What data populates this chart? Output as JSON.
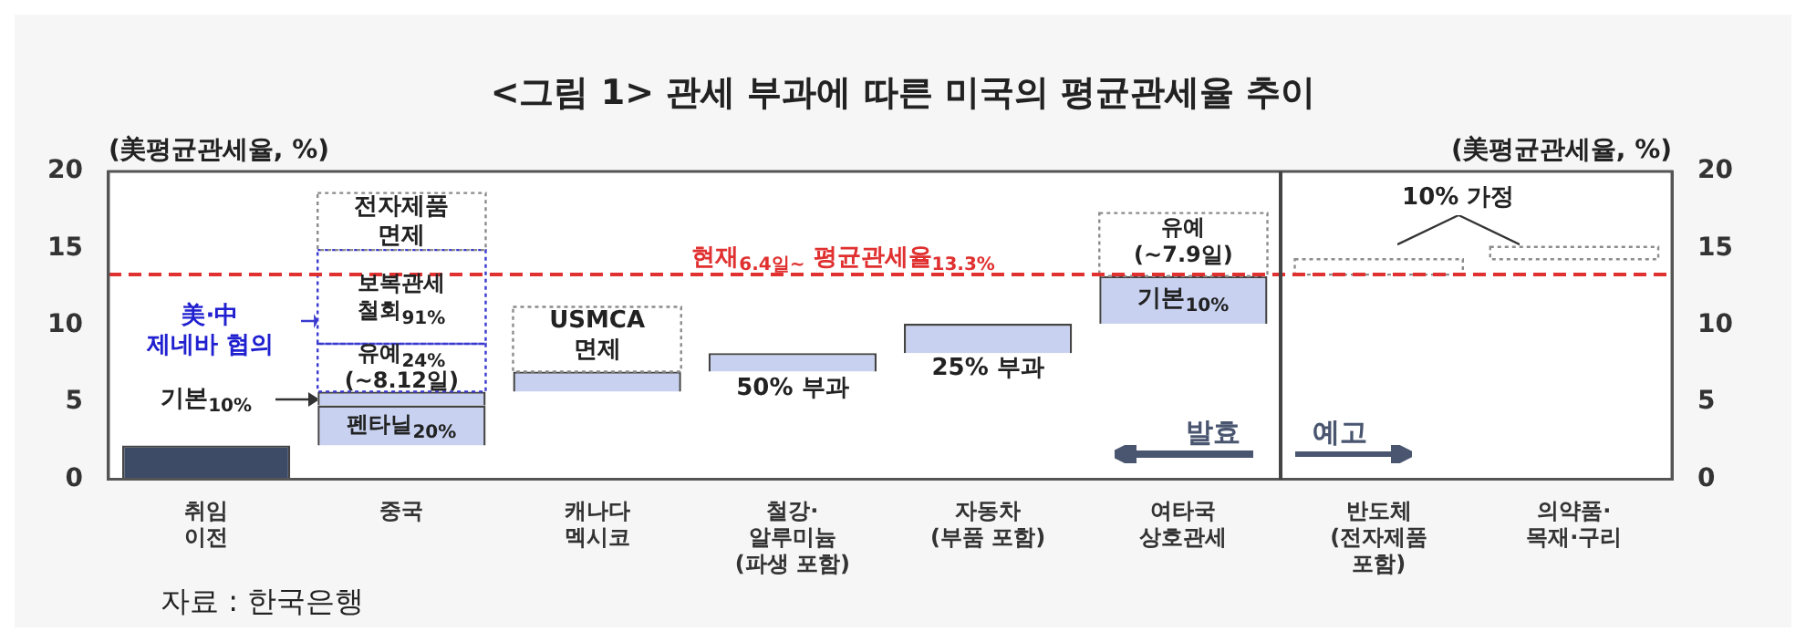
{
  "chart_data": {
    "type": "bar",
    "title": "<그림 1> 관세 부과에 따른 미국의 평균관세율 추이",
    "ylabel": "(美평균관세율, %)",
    "y2label": "(美평균관세율, %)",
    "categories": [
      "취임\n이전",
      "중국",
      "캐나다\n멕시코",
      "철강·\n알루미늄\n(파생 포함)",
      "자동차\n(부품 포함)",
      "여타국\n상호관세",
      "반도체\n(전자제품\n포함)",
      "의약품·\n목재·구리"
    ],
    "series": [
      {
        "colors": [
          "#3d4b66",
          "#c8d2f0",
          "#c8d2f0",
          "#c8d2f0",
          "#c8d2f0",
          "#c8d2f0",
          null,
          null
        ],
        "line_style": "solid",
        "base": [
          0,
          2.2,
          5.7,
          7.0,
          8.2,
          10.1,
          null,
          null
        ],
        "values": [
          2.2,
          2.6,
          1.3,
          1.2,
          1.9,
          3.1,
          null,
          null
        ]
      },
      {
        "color": "#c8d2f0",
        "line_style": "solid",
        "base": [
          null,
          4.8,
          null,
          null,
          null,
          null,
          null,
          null
        ],
        "values": [
          null,
          0.9,
          null,
          null,
          null,
          null,
          null,
          null
        ]
      },
      {
        "color": "#3a3ad0",
        "line_style": "dotted",
        "base": [
          null,
          5.7,
          null,
          null,
          null,
          null,
          null,
          null
        ],
        "values": [
          null,
          3.1,
          null,
          null,
          null,
          null,
          null,
          null
        ]
      },
      {
        "color": "#3a3ad0",
        "line_style": "dotted",
        "base": [
          null,
          8.8,
          null,
          null,
          null,
          null,
          null,
          null
        ],
        "values": [
          null,
          6.1,
          null,
          null,
          null,
          null,
          null,
          null
        ]
      },
      {
        "color": "#8c8c8c",
        "line_style": "dotted",
        "base": [
          null,
          14.9,
          7.0,
          null,
          null,
          13.2,
          13.3,
          14.3
        ],
        "values": [
          null,
          3.7,
          4.2,
          null,
          null,
          4.1,
          1.0,
          0.8
        ]
      }
    ],
    "ylim": [
      0,
      20
    ],
    "yticks": [
      0,
      5,
      10,
      15,
      20
    ],
    "y2lim": [
      0,
      20
    ],
    "y2ticks": [
      0,
      5,
      10,
      15,
      20
    ],
    "ref_lines": [
      {
        "axis": "y",
        "value": 13.3,
        "label": "현재$_{6.4일~}$ 평균관세율$_{13.3%}$",
        "color": "#e03030",
        "line_style": "dashed"
      }
    ],
    "annotations": [
      "전자제품\n면제",
      "보복관세\n철회$_{91%}$",
      "유예$_{24%}$\n(~8.12일)",
      "펜타닐$_{20%}$",
      "기본$_{10%}$",
      "美·中\n제네바 협의",
      "USMCA\n면제",
      "50% 부과",
      "25% 부과",
      "유예\n(~7.9일)",
      "기본$_{10%}$",
      "발효",
      "예고",
      "10% 가정",
      "자료 : 한국은행"
    ]
  }
}
